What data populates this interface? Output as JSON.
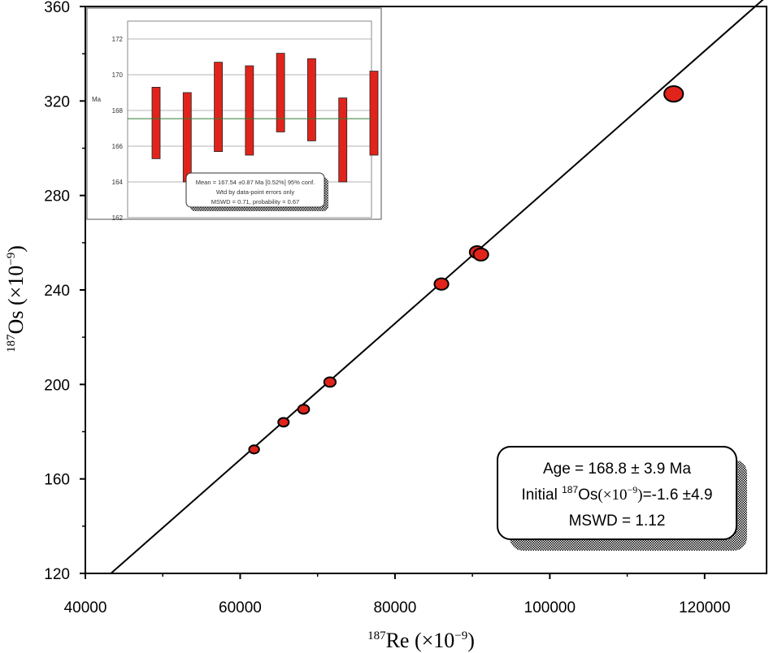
{
  "chart_data": [
    {
      "type": "scatter",
      "subtype": "isochron",
      "xlabel": {
        "base": "Re",
        "sup": "187",
        "unit": "(×10",
        "unit_exp": "−9",
        "unit_close": ")"
      },
      "ylabel": {
        "base": "Os",
        "sup": "187",
        "unit": "(×10",
        "unit_exp": "−9",
        "unit_close": ")"
      },
      "xlim": [
        40000,
        128000
      ],
      "ylim": [
        120,
        360
      ],
      "x_ticks": [
        40000,
        60000,
        80000,
        100000,
        120000
      ],
      "x_tick_labels": [
        "40000",
        "60000",
        "80000",
        "100000",
        "120000"
      ],
      "y_ticks": [
        120,
        160,
        200,
        240,
        280,
        320,
        360
      ],
      "y_tick_labels": [
        "120",
        "160",
        "200",
        "240",
        "280",
        "320",
        "360"
      ],
      "grid": false,
      "points": [
        {
          "x": 61800,
          "y": 172.5
        },
        {
          "x": 65600,
          "y": 184
        },
        {
          "x": 68200,
          "y": 189.5
        },
        {
          "x": 71600,
          "y": 201
        },
        {
          "x": 86000,
          "y": 242.5
        },
        {
          "x": 90600,
          "y": 256
        },
        {
          "x": 91100,
          "y": 255
        },
        {
          "x": 116000,
          "y": 323
        }
      ],
      "fit_line": {
        "x": [
          43300,
          130000
        ],
        "y": [
          120,
          370
        ]
      },
      "annotation": {
        "line1": "Age = 168.8 ± 3.9 Ma",
        "line2_prefix": "Initial ",
        "line2_sup": "187",
        "line2_os": "Os",
        "line2_unit": "(×10",
        "line2_exp": "−9",
        "line2_close": ")",
        "line2_value": "=-1.6 ±4.9",
        "line3": "MSWD = 1.12",
        "placement": "bottom-right"
      }
    },
    {
      "type": "bar",
      "subtype": "error-bar-range",
      "ylabel": "Ma",
      "ylim": [
        162,
        173
      ],
      "y_ticks": [
        162,
        164,
        166,
        168,
        170,
        172
      ],
      "y_tick_labels": [
        "162",
        "164",
        "166",
        "168",
        "170",
        "172"
      ],
      "grid": true,
      "mean_line": 167.54,
      "ranges": [
        {
          "low": 165.3,
          "high": 169.3
        },
        {
          "low": 164.0,
          "high": 169.0
        },
        {
          "low": 165.7,
          "high": 170.7
        },
        {
          "low": 165.5,
          "high": 170.5
        },
        {
          "low": 166.8,
          "high": 171.2
        },
        {
          "low": 166.3,
          "high": 170.9
        },
        {
          "low": 164.0,
          "high": 168.7
        },
        {
          "low": 165.5,
          "high": 170.2
        }
      ],
      "annotation": {
        "line1": "Mean = 167.54 ±0.87 Ma [0.52%] 95% conf.",
        "line2": "Wtd by data-point errors only",
        "line3": "MSWD = 0.71, probability = 0.67",
        "placement": "bottom"
      }
    }
  ]
}
